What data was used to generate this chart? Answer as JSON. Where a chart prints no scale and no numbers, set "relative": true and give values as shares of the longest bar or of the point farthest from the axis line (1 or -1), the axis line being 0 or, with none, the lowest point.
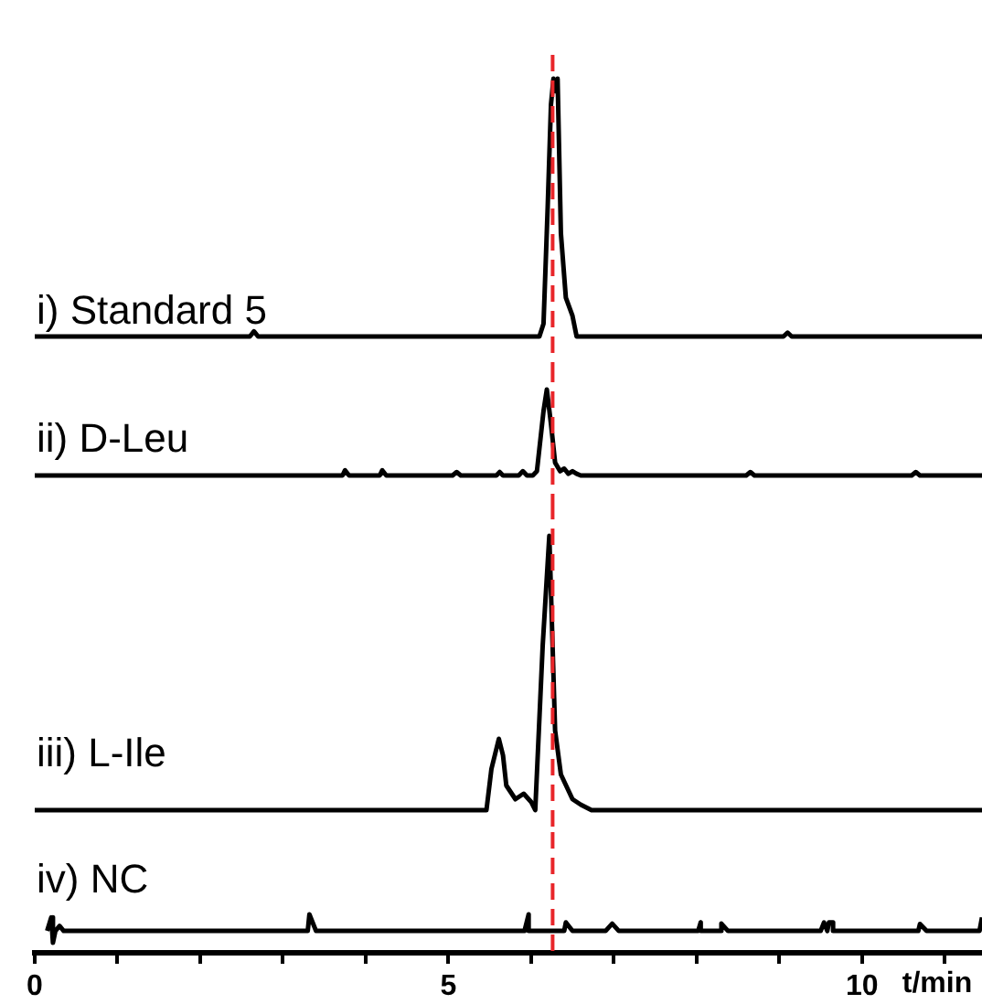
{
  "chart_data": [
    {
      "type": "line",
      "relative": true,
      "xlim": [
        0,
        11.45
      ],
      "tick_labels": false,
      "legend": false,
      "series": [
        {
          "name": "i) Standard 5",
          "color": "#000000",
          "x": [
            0,
            2.6,
            2.65,
            2.7,
            6.1,
            6.15,
            6.2,
            6.24,
            6.27,
            6.3,
            6.32,
            6.36,
            6.42,
            6.5,
            6.55,
            9.05,
            9.1,
            9.15,
            11.45
          ],
          "values": [
            0,
            0,
            0.02,
            0,
            0,
            0.05,
            0.5,
            0.9,
            1,
            0.95,
            1,
            0.4,
            0.15,
            0.08,
            0,
            0,
            0.015,
            0,
            0
          ]
        }
      ],
      "ref_lines": [
        {
          "axis": "x",
          "value": 6.26,
          "color": "#e8262a",
          "line_style": "dashed"
        }
      ]
    },
    {
      "type": "line",
      "relative": true,
      "xlim": [
        0,
        11.45
      ],
      "tick_labels": false,
      "legend": false,
      "series": [
        {
          "name": "ii) D-Leu",
          "color": "#000000",
          "x": [
            0,
            3.72,
            3.75,
            3.8,
            4.17,
            4.2,
            4.25,
            5.05,
            5.1,
            5.15,
            5.58,
            5.62,
            5.66,
            5.85,
            5.9,
            5.95,
            6.02,
            6.07,
            6.15,
            6.19,
            6.24,
            6.29,
            6.35,
            6.4,
            6.45,
            6.5,
            6.55,
            6.6,
            8.6,
            8.65,
            8.7,
            10.6,
            10.65,
            10.7,
            11.45
          ],
          "values": [
            0,
            0,
            0.06,
            0,
            0,
            0.06,
            0,
            0,
            0.04,
            0,
            0,
            0.04,
            0,
            0,
            0.05,
            0,
            0,
            0.05,
            0.75,
            1,
            0.6,
            0.15,
            0.05,
            0.08,
            0.02,
            0.05,
            0.02,
            0,
            0,
            0.04,
            0,
            0,
            0.04,
            0,
            0
          ]
        }
      ],
      "ref_lines": [
        {
          "axis": "x",
          "value": 6.26,
          "color": "#e8262a",
          "line_style": "dashed"
        }
      ]
    },
    {
      "type": "line",
      "relative": true,
      "xlim": [
        0,
        11.45
      ],
      "tick_labels": false,
      "legend": false,
      "series": [
        {
          "name": "iii) L-Ile",
          "color": "#000000",
          "x": [
            0,
            5.46,
            5.52,
            5.61,
            5.66,
            5.7,
            5.81,
            5.91,
            6.0,
            6.05,
            6.14,
            6.22,
            6.29,
            6.36,
            6.5,
            6.6,
            6.73,
            11.45
          ],
          "values": [
            0,
            0,
            0.15,
            0.26,
            0.2,
            0.09,
            0.04,
            0.06,
            0.03,
            0,
            0.6,
            1,
            0.29,
            0.13,
            0.04,
            0.02,
            0,
            0
          ]
        }
      ],
      "ref_lines": [
        {
          "axis": "x",
          "value": 6.26,
          "color": "#e8262a",
          "line_style": "dashed"
        }
      ]
    },
    {
      "type": "line",
      "relative": true,
      "xlim": [
        0,
        11.45
      ],
      "tick_labels": "x",
      "legend": false,
      "xlabel": "t/min",
      "xticks": [
        0,
        {
          "value": 1,
          "label": null
        },
        {
          "value": 2,
          "label": null
        },
        {
          "value": 3,
          "label": null
        },
        {
          "value": 4,
          "label": null
        },
        5,
        {
          "value": 6,
          "label": null
        },
        {
          "value": 7,
          "label": null
        },
        {
          "value": 8,
          "label": null
        },
        {
          "value": 9,
          "label": null
        },
        10,
        {
          "value": 11,
          "label": null
        }
      ],
      "series": [
        {
          "name": "iv) NC",
          "color": "#000000",
          "x": [
            0.15,
            0.2,
            0.22,
            0.25,
            0.3,
            0.35,
            3.3,
            3.32,
            3.4,
            5.92,
            5.97,
            5.97,
            6.4,
            6.42,
            6.5,
            6.9,
            6.98,
            7.06,
            8.02,
            8.05,
            8.05,
            8.3,
            8.3,
            8.38,
            9.5,
            9.54,
            9.58,
            9.6,
            9.65,
            9.65,
            10.68,
            10.7,
            10.78,
            11.42,
            11.45
          ],
          "values": [
            0.57,
            0.92,
            0.26,
            0.57,
            0.7,
            0.57,
            0.57,
            1,
            0.57,
            0.57,
            1,
            0.57,
            0.57,
            0.79,
            0.57,
            0.57,
            0.76,
            0.57,
            0.57,
            0.79,
            0.57,
            0.57,
            0.76,
            0.57,
            0.57,
            0.79,
            0.57,
            0.79,
            0.79,
            0.57,
            0.57,
            0.75,
            0.57,
            0.57,
            0.92
          ]
        }
      ],
      "ref_lines": [
        {
          "axis": "x",
          "value": 6.26,
          "color": "#e8262a",
          "line_style": "dashed"
        }
      ]
    }
  ]
}
